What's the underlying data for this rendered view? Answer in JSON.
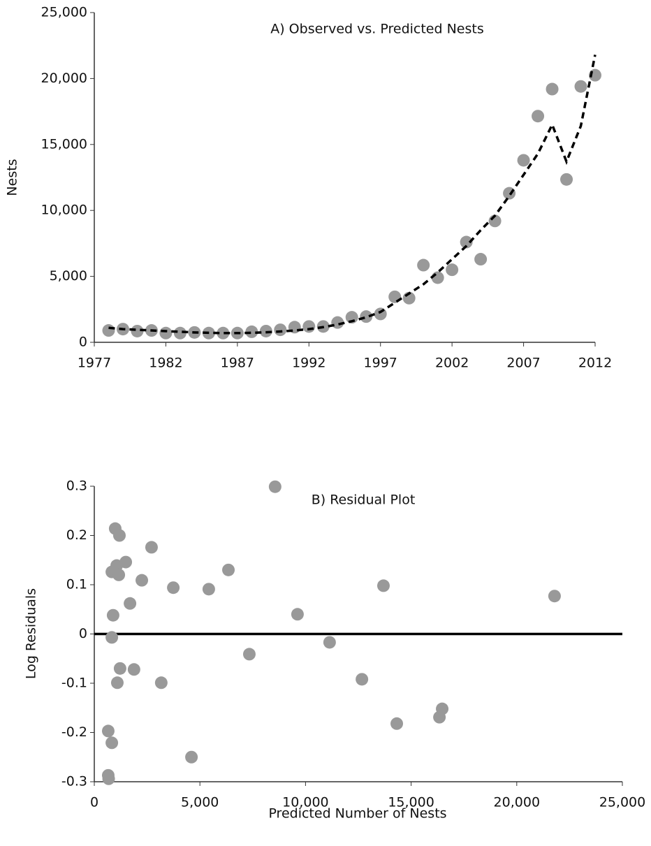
{
  "chart_data": [
    {
      "type": "scatter",
      "title": "A) Observed vs. Predicted Nests",
      "y_label": "Nests",
      "x": [
        1978,
        1979,
        1980,
        1981,
        1982,
        1983,
        1984,
        1985,
        1986,
        1987,
        1988,
        1989,
        1990,
        1991,
        1992,
        1993,
        1994,
        1995,
        1996,
        1997,
        1998,
        1999,
        2000,
        2001,
        2002,
        2003,
        2004,
        2005,
        2006,
        2007,
        2008,
        2009,
        2010,
        2011,
        2012
      ],
      "series": [
        {
          "color": "#999999",
          "style": "markers",
          "values": [
            900,
            1000,
            850,
            900,
            700,
            700,
            750,
            700,
            700,
            700,
            800,
            850,
            950,
            1150,
            1200,
            1200,
            1500,
            1900,
            1950,
            2150,
            3450,
            3350,
            5850,
            4900,
            5500,
            7600,
            6300,
            9200,
            11300,
            13800,
            17150,
            19200,
            12350,
            19400,
            20250
          ]
        },
        {
          "color": "#000000",
          "style": "dashed",
          "values": [
            1100,
            1000,
            950,
            900,
            850,
            800,
            750,
            720,
            700,
            700,
            720,
            760,
            820,
            900,
            1000,
            1150,
            1350,
            1600,
            1900,
            2300,
            3000,
            3700,
            4400,
            5300,
            6300,
            7300,
            8500,
            9600,
            11100,
            12700,
            14300,
            16500,
            13700,
            16400,
            21800
          ]
        }
      ],
      "xlim": [
        1977,
        2012
      ],
      "xticks": [
        1977,
        1982,
        1987,
        1992,
        1997,
        2002,
        2007,
        2012
      ],
      "ylim": [
        0,
        25000
      ],
      "yticks": [
        0,
        {
          "value": 5000,
          "label": "5,000"
        },
        {
          "value": 10000,
          "label": "10,000"
        },
        {
          "value": 15000,
          "label": "15,000"
        },
        {
          "value": 20000,
          "label": "20,000"
        },
        {
          "value": 25000,
          "label": "25,000"
        }
      ]
    },
    {
      "type": "scatter",
      "title": "B) Residual Plot",
      "x_label": "Predicted Number of Nests",
      "y_label": "Log Residuals",
      "x": [
        660,
        680,
        660,
        830,
        830,
        890,
        830,
        990,
        1060,
        1160,
        1190,
        1220,
        1090,
        1490,
        1690,
        1880,
        2250,
        2710,
        3170,
        3740,
        4600,
        5420,
        6350,
        7340,
        8560,
        9620,
        11140,
        12670,
        13690,
        14320,
        16340,
        16470,
        21790
      ],
      "series": [
        {
          "color": "#999999",
          "style": "markers",
          "values": [
            -0.287,
            -0.294,
            -0.197,
            -0.221,
            -0.007,
            0.038,
            0.126,
            0.214,
            0.139,
            0.12,
            0.2,
            -0.07,
            -0.099,
            0.146,
            0.062,
            -0.072,
            0.109,
            0.176,
            -0.099,
            0.094,
            -0.25,
            0.091,
            0.13,
            -0.041,
            0.299,
            0.04,
            -0.017,
            -0.092,
            0.098,
            -0.182,
            -0.169,
            -0.152,
            0.077
          ]
        }
      ],
      "reference_line": 0,
      "xlim": [
        0,
        25000
      ],
      "xticks": [
        0,
        {
          "value": 5000,
          "label": "5,000"
        },
        {
          "value": 10000,
          "label": "10,000"
        },
        {
          "value": 15000,
          "label": "15,000"
        },
        {
          "value": 20000,
          "label": "20,000"
        },
        {
          "value": 25000,
          "label": "25,000"
        }
      ],
      "ylim": [
        -0.3,
        0.3
      ],
      "yticks": [
        -0.3,
        -0.2,
        -0.1,
        0,
        0.1,
        0.2,
        0.3
      ]
    }
  ]
}
